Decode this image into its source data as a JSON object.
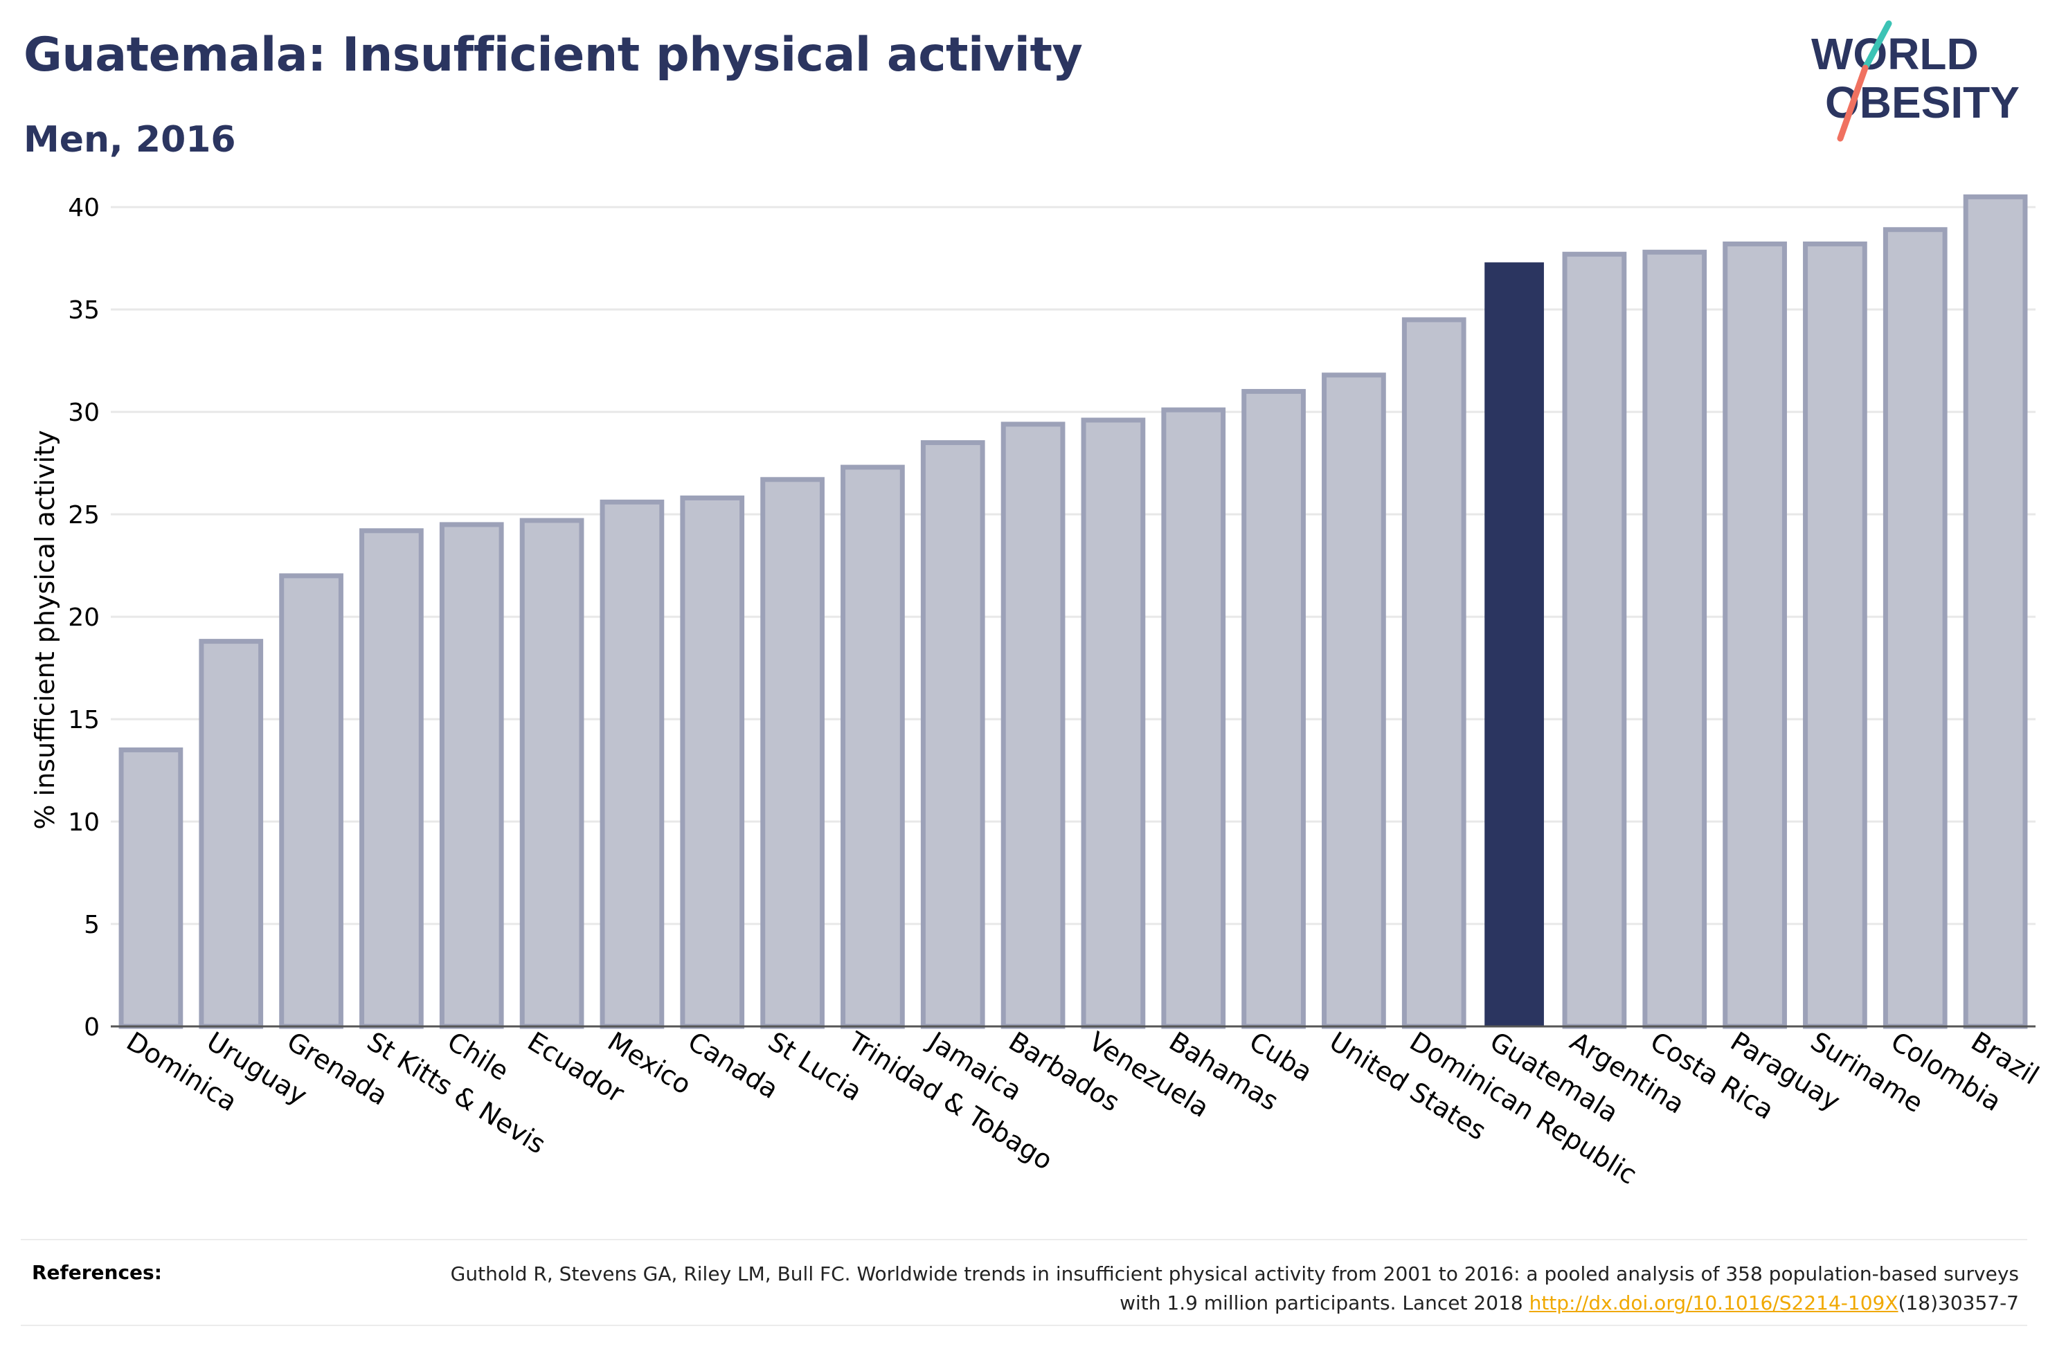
{
  "title": "Guatemala: Insufficient physical activity",
  "subtitle": "Men, 2016",
  "logo": {
    "line1": "WORLD",
    "line2": "OBESITY"
  },
  "references": {
    "label": "References:",
    "text_1": "Guthold R, Stevens GA, Riley LM, Bull FC. Worldwide trends in insufficient physical activity from 2001 to 2016: a pooled analysis of 358 population-based surveys with 1.9 million participants. Lancet 2018 ",
    "link": "http://dx.doi.org/10.1016/S2214-109X",
    "text_2": "(18)30357-7"
  },
  "colors": {
    "highlight": "#2b3560",
    "bar_fill": "#bfc2cf",
    "bar_edge": "#9ca1b8",
    "text": "#2b3560",
    "link": "#f0a800"
  },
  "chart_data": {
    "type": "bar",
    "title": "Guatemala: Insufficient physical activity",
    "subtitle": "Men, 2016",
    "xlabel": "",
    "ylabel": "% insufficient physical activity",
    "ylim": [
      0,
      42
    ],
    "yticks": [
      0,
      5,
      10,
      15,
      20,
      25,
      30,
      35,
      40
    ],
    "grid": true,
    "highlight": "Guatemala",
    "categories": [
      "Dominica",
      "Uruguay",
      "Grenada",
      "St Kitts & Nevis",
      "Chile",
      "Ecuador",
      "Mexico",
      "Canada",
      "St Lucia",
      "Trinidad & Tobago",
      "Jamaica",
      "Barbados",
      "Venezuela",
      "Bahamas",
      "Cuba",
      "United States",
      "Dominican Republic",
      "Guatemala",
      "Argentina",
      "Costa Rica",
      "Paraguay",
      "Suriname",
      "Colombia",
      "Brazil"
    ],
    "values": [
      13.5,
      18.8,
      22.0,
      24.2,
      24.5,
      24.7,
      25.6,
      25.8,
      26.7,
      27.3,
      28.5,
      29.4,
      29.6,
      30.1,
      31.0,
      31.8,
      34.5,
      37.3,
      37.7,
      37.8,
      38.2,
      38.2,
      38.9,
      40.5
    ]
  }
}
